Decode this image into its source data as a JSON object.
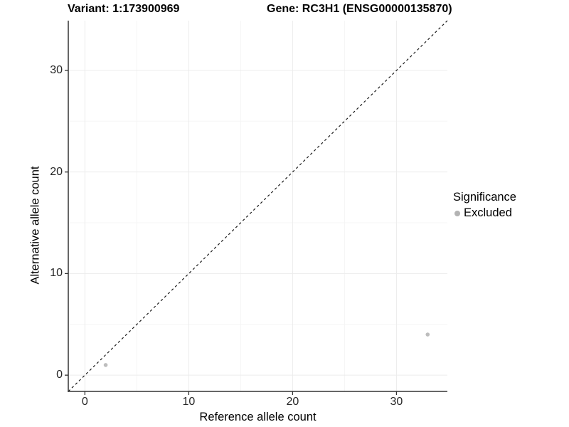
{
  "chart_data": {
    "type": "scatter",
    "title_left": "Variant: 1:173900969",
    "title_right": "Gene: RC3H1 (ENSG00000135870)",
    "xlabel": "Reference allele count",
    "ylabel": "Alternative allele count",
    "xlim": [
      -1.6,
      34.9
    ],
    "ylim": [
      -1.6,
      34.9
    ],
    "x_ticks": [
      0,
      10,
      20,
      30
    ],
    "y_ticks": [
      0,
      10,
      20,
      30
    ],
    "x_minor_ticks": [
      5,
      15,
      25
    ],
    "y_minor_ticks": [
      5,
      15,
      25
    ],
    "grid": true,
    "identity_line": {
      "equation": "y = x",
      "style": "dashed",
      "color": "#000000"
    },
    "series": [
      {
        "name": "Excluded",
        "color": "#bdbdbd",
        "points": [
          {
            "x": 2,
            "y": 1
          },
          {
            "x": 33,
            "y": 4
          }
        ]
      }
    ],
    "legend": {
      "position": "right",
      "title": "Significance",
      "entries": [
        {
          "label": "Excluded",
          "color": "#b3b3b3"
        }
      ]
    }
  },
  "colors": {
    "background": "#ffffff",
    "axis_line": "#333333",
    "tick_mark": "#333333",
    "tick_label": "#262626",
    "grid_major": "#ececec",
    "grid_minor": "#f5f5f5",
    "point": "#bdbdbd",
    "identity_line": "#1a1a1a"
  }
}
